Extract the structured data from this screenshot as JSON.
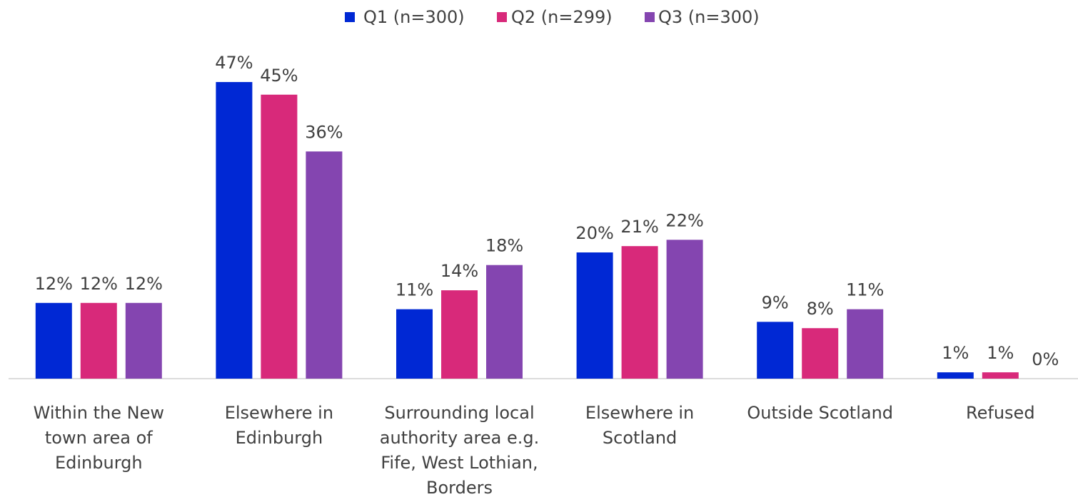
{
  "chart_data": {
    "type": "bar",
    "categories": [
      "Within the New town area of Edinburgh",
      "Elsewhere in Edinburgh",
      "Surrounding local authority area e.g. Fife, West Lothian, Borders",
      "Elsewhere in Scotland",
      "Outside Scotland",
      "Refused"
    ],
    "series": [
      {
        "name": "Q1 (n=300)",
        "color": "#0028d4",
        "values": [
          12,
          47,
          11,
          20,
          9,
          1
        ],
        "value_labels": [
          "12%",
          "47%",
          "11%",
          "20%",
          "9%",
          "1%"
        ]
      },
      {
        "name": "Q2 (n=299)",
        "color": "#d8297a",
        "values": [
          12,
          45,
          14,
          21,
          8,
          1
        ],
        "value_labels": [
          "12%",
          "45%",
          "14%",
          "21%",
          "8%",
          "1%"
        ]
      },
      {
        "name": "Q3 (n=300)",
        "color": "#8445b0",
        "values": [
          12,
          36,
          18,
          22,
          11,
          0
        ],
        "value_labels": [
          "12%",
          "36%",
          "18%",
          "22%",
          "11%",
          "0%"
        ]
      }
    ],
    "legend": "top"
  }
}
